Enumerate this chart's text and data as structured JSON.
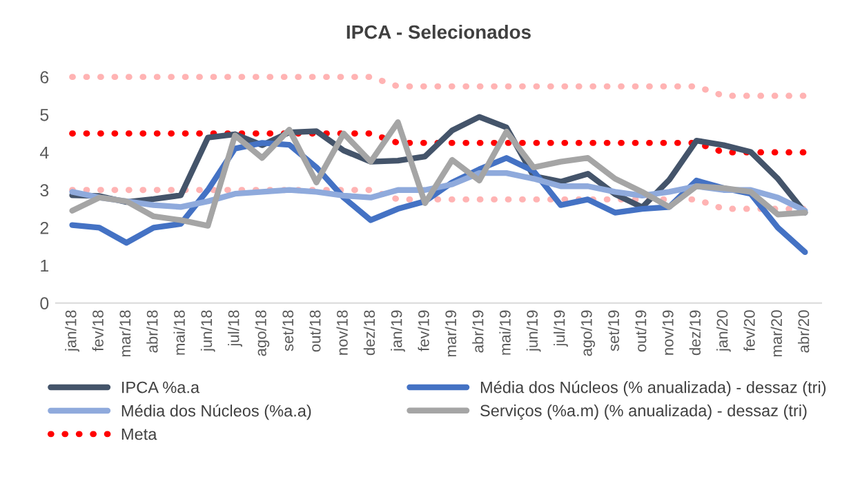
{
  "chart_data": {
    "type": "line",
    "title": "IPCA - Selecionados",
    "categories": [
      "jan/18",
      "fev/18",
      "mar/18",
      "abr/18",
      "mai/18",
      "jun/18",
      "jul/18",
      "ago/18",
      "set/18",
      "out/18",
      "nov/18",
      "dez/18",
      "jan/19",
      "fev/19",
      "mar/19",
      "abr/19",
      "mai/19",
      "jun/19",
      "jul/19",
      "ago/19",
      "set/19",
      "out/19",
      "nov/19",
      "dez/19",
      "jan/20",
      "fev/20",
      "mar/20",
      "abr/20"
    ],
    "series": [
      {
        "name": "IPCA %a.a",
        "color": "#44546a",
        "values": [
          2.86,
          2.84,
          2.68,
          2.76,
          2.86,
          4.39,
          4.48,
          4.19,
          4.53,
          4.56,
          4.05,
          3.75,
          3.78,
          3.89,
          4.58,
          4.94,
          4.66,
          3.37,
          3.22,
          3.43,
          2.89,
          2.54,
          3.27,
          4.31,
          4.19,
          4.01,
          3.3,
          2.4
        ]
      },
      {
        "name": "Média dos Núcleos (% anualizada) - dessaz (tri)",
        "color": "#4472c4",
        "values": [
          2.07,
          2.0,
          1.6,
          2.0,
          2.1,
          3.0,
          4.1,
          4.25,
          4.2,
          3.6,
          2.8,
          2.2,
          2.5,
          2.7,
          3.2,
          3.55,
          3.85,
          3.5,
          2.6,
          2.75,
          2.4,
          2.5,
          2.55,
          3.25,
          3.05,
          2.9,
          2.0,
          1.35
        ]
      },
      {
        "name": "Média dos Núcleos (%a.a)",
        "color": "#8faadc",
        "values": [
          2.95,
          2.8,
          2.7,
          2.6,
          2.55,
          2.7,
          2.9,
          2.95,
          3.0,
          2.95,
          2.85,
          2.8,
          3.0,
          3.0,
          3.15,
          3.45,
          3.45,
          3.3,
          3.1,
          3.1,
          2.95,
          2.85,
          2.95,
          3.1,
          3.0,
          3.0,
          2.8,
          2.45
        ]
      },
      {
        "name": "Serviços (%a.m) (% anualizada) - dessaz (tri)",
        "color": "#a5a5a5",
        "values": [
          2.45,
          2.8,
          2.7,
          2.3,
          2.2,
          2.05,
          4.45,
          3.85,
          4.6,
          3.2,
          4.5,
          3.75,
          4.8,
          2.65,
          3.8,
          3.25,
          4.55,
          3.6,
          3.75,
          3.85,
          3.3,
          2.95,
          2.55,
          3.1,
          3.05,
          2.95,
          2.35,
          2.4
        ]
      },
      {
        "name": "Meta",
        "color": "#ff0000",
        "line_style": "dotted",
        "values": [
          4.5,
          4.5,
          4.5,
          4.5,
          4.5,
          4.5,
          4.5,
          4.5,
          4.5,
          4.5,
          4.5,
          4.5,
          4.25,
          4.25,
          4.25,
          4.25,
          4.25,
          4.25,
          4.25,
          4.25,
          4.25,
          4.25,
          4.25,
          4.25,
          4.0,
          4.0,
          4.0,
          4.0
        ]
      },
      {
        "color": "#ffb3b3",
        "line_style": "dotted",
        "values": [
          6.0,
          6.0,
          6.0,
          6.0,
          6.0,
          6.0,
          6.0,
          6.0,
          6.0,
          6.0,
          6.0,
          6.0,
          5.75,
          5.75,
          5.75,
          5.75,
          5.75,
          5.75,
          5.75,
          5.75,
          5.75,
          5.75,
          5.75,
          5.75,
          5.5,
          5.5,
          5.5,
          5.5
        ]
      },
      {
        "color": "#ffb3b3",
        "line_style": "dotted",
        "values": [
          3.0,
          3.0,
          3.0,
          3.0,
          3.0,
          3.0,
          3.0,
          3.0,
          3.0,
          3.0,
          3.0,
          3.0,
          2.75,
          2.75,
          2.75,
          2.75,
          2.75,
          2.75,
          2.75,
          2.75,
          2.75,
          2.75,
          2.75,
          2.75,
          2.5,
          2.5,
          2.5,
          2.5
        ]
      }
    ],
    "ylim": [
      0,
      6
    ],
    "yticks": [
      0,
      1,
      2,
      3,
      4,
      5,
      6
    ],
    "grid": false,
    "legend": "bottom",
    "marker": "none",
    "line_style": "solid"
  }
}
